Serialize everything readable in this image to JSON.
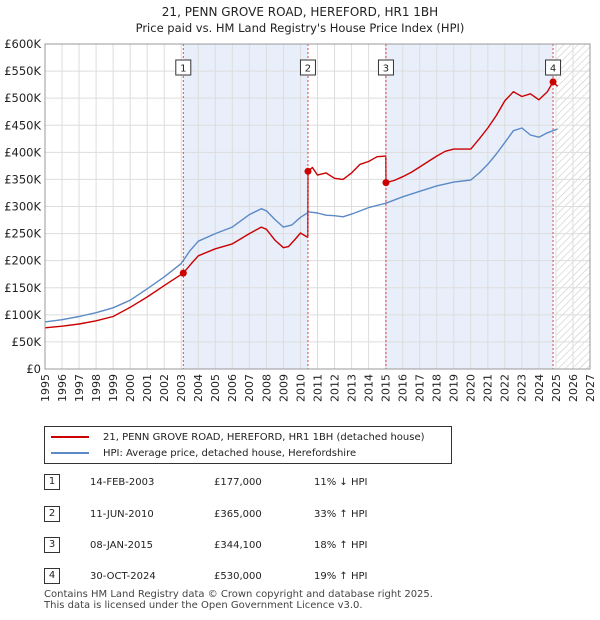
{
  "chart_data": {
    "type": "line",
    "title": "21, PENN GROVE ROAD, HEREFORD, HR1 1BH",
    "subtitle": "Price paid vs. HM Land Registry's House Price Index (HPI)",
    "xlabel": "",
    "ylabel": "",
    "xlim": [
      1995,
      2027
    ],
    "ylim": [
      0,
      600000
    ],
    "y_ticks": [
      0,
      50000,
      100000,
      150000,
      200000,
      250000,
      300000,
      350000,
      400000,
      450000,
      500000,
      550000,
      600000
    ],
    "y_tick_labels": [
      "£0",
      "£50K",
      "£100K",
      "£150K",
      "£200K",
      "£250K",
      "£300K",
      "£350K",
      "£400K",
      "£450K",
      "£500K",
      "£550K",
      "£600K"
    ],
    "x_ticks": [
      1995,
      1996,
      1997,
      1998,
      1999,
      2000,
      2001,
      2002,
      2003,
      2004,
      2005,
      2006,
      2007,
      2008,
      2009,
      2010,
      2011,
      2012,
      2013,
      2014,
      2015,
      2016,
      2017,
      2018,
      2019,
      2020,
      2021,
      2022,
      2023,
      2024,
      2025,
      2026,
      2027
    ],
    "x_tick_labels": [
      "1995",
      "1996",
      "1997",
      "1998",
      "1999",
      "2000",
      "2001",
      "2002",
      "2003",
      "2004",
      "2005",
      "2006",
      "2007",
      "2008",
      "2009",
      "2010",
      "2011",
      "2012",
      "2013",
      "2014",
      "2015",
      "2016",
      "2017",
      "2018",
      "2019",
      "2020",
      "2021",
      "2022",
      "2023",
      "2024",
      "2025",
      "2026",
      "2027"
    ],
    "grid": true,
    "shaded_periods": [
      [
        2003.12,
        2010.44
      ],
      [
        2015.02,
        2024.83
      ]
    ],
    "forecast_start": 2025.0,
    "series": [
      {
        "name": "21, PENN GROVE ROAD, HEREFORD, HR1 1BH (detached house)",
        "color": "#cc0000",
        "x": [
          1995.0,
          1996.0,
          1997.0,
          1998.0,
          1999.0,
          2000.0,
          2001.0,
          2002.0,
          2003.12,
          2003.6,
          2004.0,
          2005.0,
          2006.0,
          2007.0,
          2007.7,
          2008.0,
          2008.5,
          2009.0,
          2009.3,
          2009.7,
          2010.0,
          2010.43,
          2010.44,
          2010.7,
          2011.0,
          2011.5,
          2012.0,
          2012.5,
          2013.0,
          2013.5,
          2014.0,
          2014.5,
          2015.01,
          2015.02,
          2015.5,
          2016.0,
          2016.5,
          2017.0,
          2017.5,
          2018.0,
          2018.5,
          2019.0,
          2019.5,
          2020.0,
          2020.5,
          2021.0,
          2021.5,
          2022.0,
          2022.5,
          2023.0,
          2023.5,
          2024.0,
          2024.5,
          2024.83,
          2025.1
        ],
        "values": [
          76000,
          79000,
          83000,
          89000,
          97000,
          114000,
          133000,
          154000,
          177000,
          195000,
          209000,
          222000,
          231000,
          250000,
          262000,
          258000,
          238000,
          224000,
          226000,
          240000,
          251000,
          243000,
          365000,
          372000,
          358000,
          362000,
          352000,
          350000,
          362000,
          378000,
          383000,
          392000,
          393000,
          344100,
          348000,
          355000,
          363000,
          373000,
          383000,
          393000,
          402000,
          406000,
          406000,
          406000,
          425000,
          445000,
          468000,
          495000,
          512000,
          503000,
          508000,
          497000,
          512000,
          530000,
          522000
        ]
      },
      {
        "name": "HPI: Average price, detached house, Herefordshire",
        "color": "#5b8ac6",
        "x": [
          1995.0,
          1996.0,
          1997.0,
          1998.0,
          1999.0,
          2000.0,
          2001.0,
          2002.0,
          2003.0,
          2003.5,
          2004.0,
          2005.0,
          2006.0,
          2007.0,
          2007.7,
          2008.0,
          2008.5,
          2009.0,
          2009.5,
          2010.0,
          2010.5,
          2011.0,
          2011.5,
          2012.0,
          2012.5,
          2013.0,
          2014.0,
          2015.0,
          2016.0,
          2017.0,
          2018.0,
          2019.0,
          2020.0,
          2020.5,
          2021.0,
          2021.5,
          2022.0,
          2022.5,
          2023.0,
          2023.5,
          2024.0,
          2024.5,
          2025.1
        ],
        "values": [
          87000,
          91000,
          97000,
          104000,
          113000,
          127000,
          148000,
          170000,
          195000,
          218000,
          236000,
          250000,
          262000,
          285000,
          296000,
          292000,
          276000,
          262000,
          266000,
          280000,
          290000,
          288000,
          284000,
          283000,
          281000,
          286000,
          298000,
          306000,
          318000,
          328000,
          338000,
          345000,
          349000,
          362000,
          378000,
          397000,
          418000,
          440000,
          445000,
          432000,
          428000,
          436000,
          443000
        ]
      }
    ],
    "annotations": [
      {
        "label": "1",
        "x": 2003.12,
        "y": 177000
      },
      {
        "label": "2",
        "x": 2010.44,
        "y": 365000
      },
      {
        "label": "3",
        "x": 2015.02,
        "y": 344100
      },
      {
        "label": "4",
        "x": 2024.83,
        "y": 530000
      }
    ]
  },
  "legend": {
    "items": [
      {
        "label": "21, PENN GROVE ROAD, HEREFORD, HR1 1BH (detached house)",
        "color": "#cc0000"
      },
      {
        "label": "HPI: Average price, detached house, Herefordshire",
        "color": "#5b8ac6"
      }
    ]
  },
  "transactions": [
    {
      "num": "1",
      "date": "14-FEB-2003",
      "price": "£177,000",
      "hpi": "11% ↓ HPI"
    },
    {
      "num": "2",
      "date": "11-JUN-2010",
      "price": "£365,000",
      "hpi": "33% ↑ HPI"
    },
    {
      "num": "3",
      "date": "08-JAN-2015",
      "price": "£344,100",
      "hpi": "18% ↑ HPI"
    },
    {
      "num": "4",
      "date": "30-OCT-2024",
      "price": "£530,000",
      "hpi": "19% ↑ HPI"
    }
  ],
  "footer": {
    "line1": "Contains HM Land Registry data © Crown copyright and database right 2025.",
    "line2": "This data is licensed under the Open Government Licence v3.0."
  }
}
